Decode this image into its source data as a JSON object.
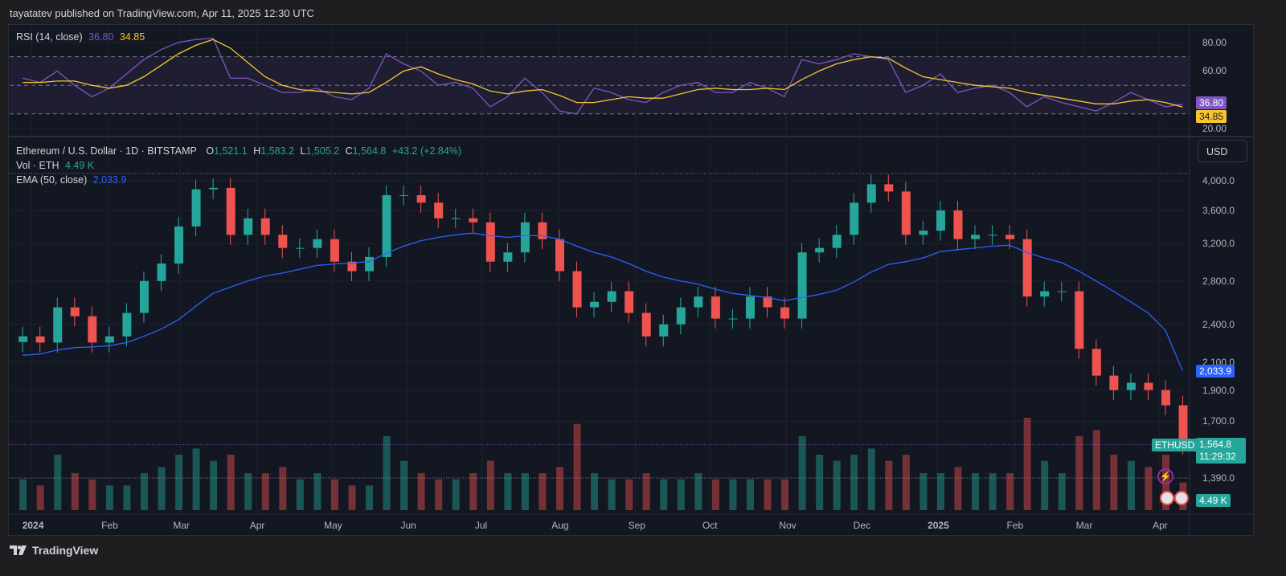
{
  "header": {
    "published": "tayatatev published on TradingView.com, Apr 11, 2025 12:30 UTC"
  },
  "footer": {
    "brand": "TradingView"
  },
  "rsi_legend": {
    "label": "RSI (14, close)",
    "rsi": "36.80",
    "ma": "34.85"
  },
  "price_legend": {
    "symbol": "Ethereum / U.S. Dollar · 1D · BITSTAMP",
    "o_label": "O",
    "o": "1,521.1",
    "h_label": "H",
    "h": "1,583.2",
    "l_label": "L",
    "l": "1,505.2",
    "c_label": "C",
    "c": "1,564.8",
    "change": "+43.2 (+2.84%)",
    "vol_label": "Vol · ETH",
    "vol": "4.49 K",
    "ema_label": "EMA (50, close)",
    "ema": "2,033.9"
  },
  "currency_button": "USD",
  "tags": {
    "ema": "2,033.9",
    "symbol": "ETHUSD",
    "price": "1,564.8",
    "countdown": "11:29:32",
    "volume": "4.49 K",
    "rsi": "36.80",
    "rsi_ma": "34.85"
  },
  "colors": {
    "up": "#26a69a",
    "down": "#ef5350",
    "ema": "#2962ff",
    "rsi": "#7e57c2",
    "rsi_ma": "#f7c62f",
    "background": "#131722"
  },
  "chart_data": {
    "type": "candlestick",
    "scale": "log",
    "grid": true,
    "x_ticks": [
      "2024",
      "Feb",
      "Mar",
      "Apr",
      "May",
      "Jun",
      "Jul",
      "Aug",
      "Sep",
      "Oct",
      "Nov",
      "Dec",
      "2025",
      "Feb",
      "Mar",
      "Apr"
    ],
    "y_ticks": [
      "4,000.0",
      "3,600.0",
      "3,200.0",
      "2,800.0",
      "2,400.0",
      "2,100.0",
      "1,900.0",
      "1,700.0",
      "1,390.0"
    ],
    "y_tick_values": [
      4000,
      3600,
      3200,
      2800,
      2400,
      2100,
      1900,
      1700,
      1390
    ],
    "ylim": [
      1250,
      4300
    ],
    "rsi_ticks": [
      "80.00",
      "60.00",
      "40.00",
      "20.00"
    ],
    "rsi_tick_values": [
      80,
      60,
      40,
      20
    ],
    "rsi_bands": [
      70,
      50,
      30
    ],
    "weeks": [
      "2023-12-25",
      "2024-01-01",
      "2024-01-08",
      "2024-01-15",
      "2024-01-22",
      "2024-01-29",
      "2024-02-05",
      "2024-02-12",
      "2024-02-19",
      "2024-02-26",
      "2024-03-04",
      "2024-03-11",
      "2024-03-18",
      "2024-03-25",
      "2024-04-01",
      "2024-04-08",
      "2024-04-15",
      "2024-04-22",
      "2024-04-29",
      "2024-05-06",
      "2024-05-13",
      "2024-05-20",
      "2024-05-27",
      "2024-06-03",
      "2024-06-10",
      "2024-06-17",
      "2024-06-24",
      "2024-07-01",
      "2024-07-08",
      "2024-07-15",
      "2024-07-22",
      "2024-07-29",
      "2024-08-05",
      "2024-08-12",
      "2024-08-19",
      "2024-08-26",
      "2024-09-02",
      "2024-09-09",
      "2024-09-16",
      "2024-09-23",
      "2024-09-30",
      "2024-10-07",
      "2024-10-14",
      "2024-10-21",
      "2024-10-28",
      "2024-11-04",
      "2024-11-11",
      "2024-11-18",
      "2024-11-25",
      "2024-12-02",
      "2024-12-09",
      "2024-12-16",
      "2024-12-23",
      "2024-12-30",
      "2025-01-06",
      "2025-01-13",
      "2025-01-20",
      "2025-01-27",
      "2025-02-03",
      "2025-02-10",
      "2025-02-17",
      "2025-02-24",
      "2025-03-03",
      "2025-03-10",
      "2025-03-17",
      "2025-03-24",
      "2025-03-31",
      "2025-04-07"
    ],
    "close": [
      2300,
      2250,
      2550,
      2470,
      2250,
      2300,
      2500,
      2800,
      2980,
      3400,
      3880,
      3900,
      3300,
      3500,
      3300,
      3150,
      3150,
      3250,
      3000,
      2900,
      3050,
      3800,
      3800,
      3700,
      3500,
      3500,
      3450,
      3000,
      3100,
      3450,
      3250,
      2900,
      2550,
      2600,
      2700,
      2500,
      2300,
      2400,
      2550,
      2650,
      2450,
      2450,
      2650,
      2550,
      2450,
      3100,
      3150,
      3300,
      3700,
      3950,
      3850,
      3300,
      3350,
      3600,
      3250,
      3300,
      3300,
      3250,
      2650,
      2700,
      2700,
      2200,
      2000,
      1900,
      1950,
      1900,
      1800,
      1565
    ],
    "ema50": [
      2150,
      2160,
      2190,
      2210,
      2215,
      2225,
      2250,
      2300,
      2360,
      2440,
      2560,
      2680,
      2740,
      2800,
      2850,
      2880,
      2920,
      2960,
      2975,
      2985,
      3000,
      3090,
      3170,
      3230,
      3270,
      3300,
      3320,
      3290,
      3270,
      3290,
      3290,
      3250,
      3170,
      3100,
      3050,
      2980,
      2900,
      2840,
      2800,
      2770,
      2720,
      2680,
      2660,
      2640,
      2610,
      2640,
      2670,
      2710,
      2790,
      2890,
      2970,
      3000,
      3040,
      3110,
      3130,
      3150,
      3170,
      3180,
      3100,
      3040,
      2990,
      2900,
      2800,
      2700,
      2600,
      2500,
      2350,
      2033.9
    ],
    "rsi": [
      55,
      52,
      60,
      50,
      42,
      48,
      58,
      68,
      75,
      80,
      82,
      83,
      55,
      55,
      50,
      45,
      45,
      48,
      42,
      40,
      48,
      72,
      65,
      60,
      50,
      52,
      48,
      35,
      42,
      55,
      45,
      32,
      30,
      48,
      45,
      40,
      38,
      45,
      50,
      52,
      45,
      45,
      52,
      48,
      42,
      68,
      65,
      68,
      72,
      70,
      68,
      45,
      50,
      58,
      45,
      48,
      50,
      45,
      35,
      42,
      38,
      35,
      32,
      38,
      45,
      40,
      35,
      36.8
    ],
    "rsi_ma": [
      52,
      52,
      53,
      53,
      50,
      48,
      50,
      56,
      64,
      72,
      78,
      82,
      76,
      66,
      56,
      50,
      47,
      46,
      45,
      44,
      45,
      52,
      60,
      63,
      58,
      54,
      51,
      46,
      44,
      46,
      47,
      43,
      38,
      38,
      40,
      42,
      41,
      41,
      44,
      47,
      48,
      47,
      47,
      48,
      47,
      54,
      60,
      65,
      68,
      70,
      69,
      62,
      56,
      54,
      52,
      50,
      49,
      48,
      45,
      43,
      41,
      39,
      37,
      37,
      39,
      40,
      38,
      34.85
    ],
    "volume_k": [
      5,
      4,
      9,
      6,
      5,
      4,
      4,
      6,
      7,
      9,
      10,
      8,
      9,
      6,
      6,
      7,
      5,
      6,
      5,
      4,
      4,
      12,
      8,
      6,
      5,
      5,
      6,
      8,
      6,
      6,
      6,
      7,
      14,
      6,
      5,
      5,
      6,
      5,
      5,
      6,
      5,
      5,
      5,
      5,
      5,
      12,
      9,
      8,
      9,
      10,
      8,
      9,
      6,
      6,
      7,
      6,
      6,
      6,
      15,
      8,
      6,
      12,
      13,
      9,
      8,
      7,
      9,
      4.49
    ]
  }
}
